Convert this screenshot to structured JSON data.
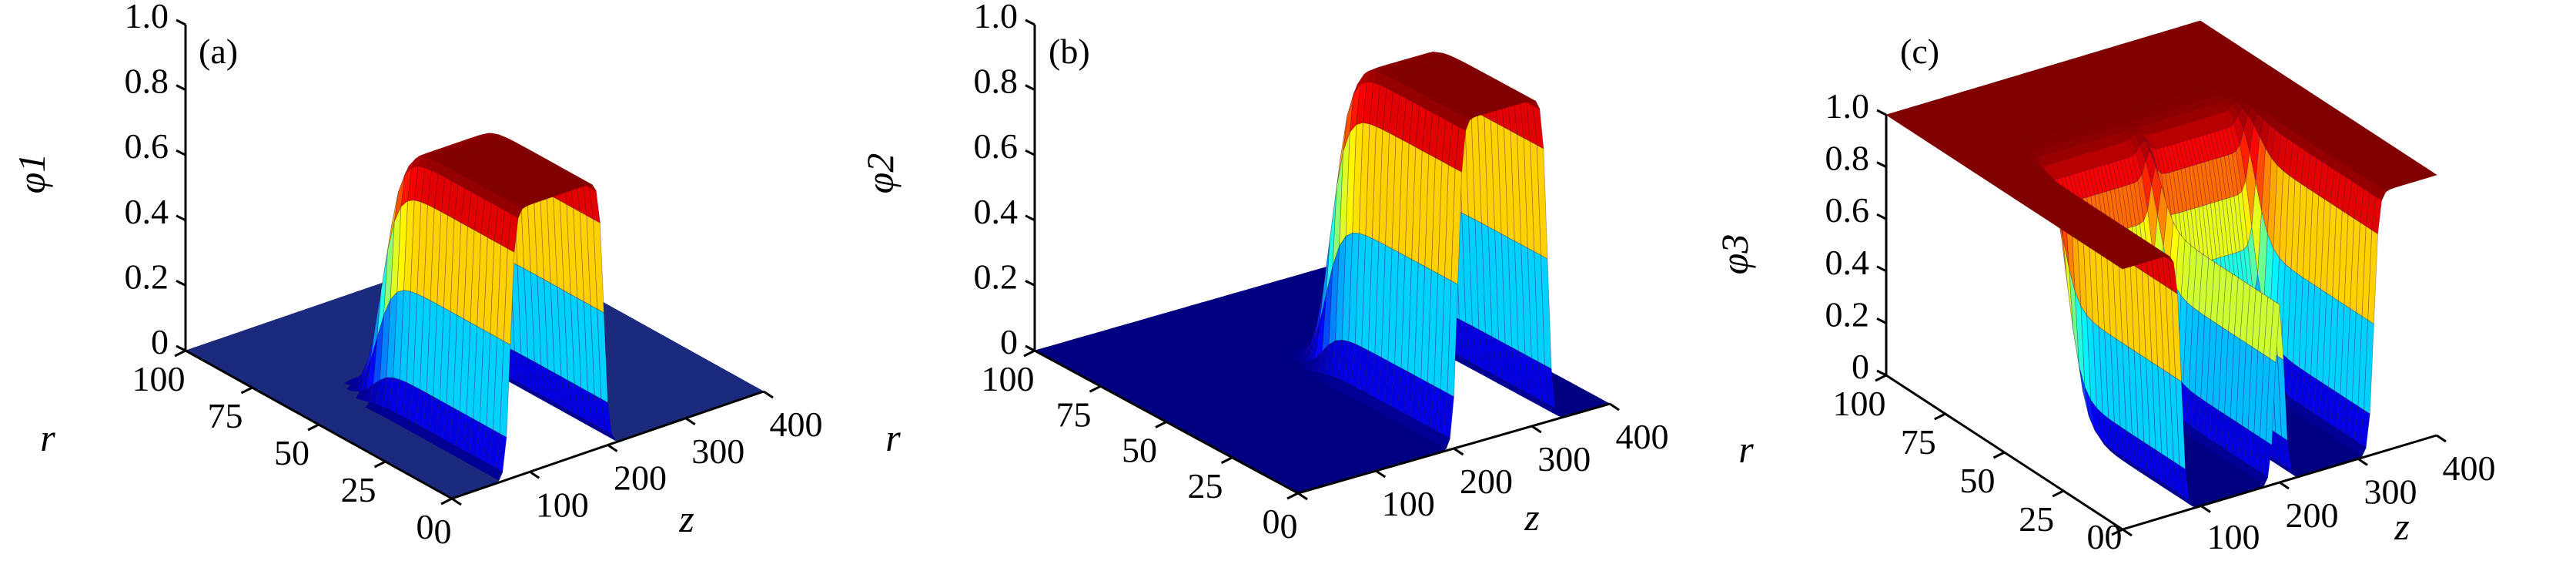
{
  "colors": {
    "floor_a": "#1b2a7c",
    "axis": "#000000"
  },
  "chart_data": [
    {
      "type": "surface",
      "panel_label": "(a)",
      "zlabel": "φ1",
      "xlabel": "z",
      "ylabel": "r",
      "zlim": [
        0,
        1.0
      ],
      "xlim": [
        0,
        400
      ],
      "ylim": [
        0,
        100
      ],
      "zticks": [
        "0",
        "0.2",
        "0.4",
        "0.6",
        "0.8",
        "1.0"
      ],
      "xticks": [
        "0",
        "100",
        "200",
        "300",
        "400"
      ],
      "yticks": [
        "0",
        "25",
        "50",
        "75",
        "100"
      ],
      "colormap": "jet",
      "peak_value": 0.82,
      "features": [
        {
          "quantity": "phi1",
          "z_range": [
            75,
            195
          ],
          "r_range": [
            0,
            50
          ],
          "value": 0.82
        }
      ]
    },
    {
      "type": "surface",
      "panel_label": "(b)",
      "zlabel": "φ2",
      "xlabel": "z",
      "ylabel": "r",
      "zlim": [
        0,
        1.0
      ],
      "xlim": [
        0,
        400
      ],
      "ylim": [
        0,
        100
      ],
      "zticks": [
        "0",
        "0.2",
        "0.4",
        "0.6",
        "0.8",
        "1.0"
      ],
      "xticks": [
        "0",
        "100",
        "200",
        "300",
        "400"
      ],
      "yticks": [
        "0",
        "25",
        "50",
        "75",
        "100"
      ],
      "colormap": "jet",
      "peak_value": 1.0,
      "features": [
        {
          "quantity": "phi2",
          "z_range": [
            205,
            320
          ],
          "r_range": [
            0,
            50
          ],
          "value": 1.0
        }
      ]
    },
    {
      "type": "surface",
      "panel_label": "(c)",
      "zlabel": "φ3",
      "xlabel": "z",
      "ylabel": "r",
      "zlim": [
        0,
        1.0
      ],
      "xlim": [
        0,
        400
      ],
      "ylim": [
        0,
        100
      ],
      "zticks": [
        "0",
        "0.2",
        "0.4",
        "0.6",
        "0.8",
        "1.0"
      ],
      "xticks": [
        "0",
        "100",
        "200",
        "300",
        "400"
      ],
      "yticks": [
        "0",
        "25",
        "50",
        "75",
        "100"
      ],
      "colormap": "jet",
      "peak_value": 1.0,
      "features": [
        {
          "quantity": "phi3",
          "z_range": [
            75,
            195
          ],
          "r_range": [
            0,
            50
          ],
          "value": 0.0
        },
        {
          "quantity": "phi3",
          "z_range": [
            205,
            320
          ],
          "r_range": [
            0,
            50
          ],
          "value": 0.0
        }
      ]
    }
  ]
}
